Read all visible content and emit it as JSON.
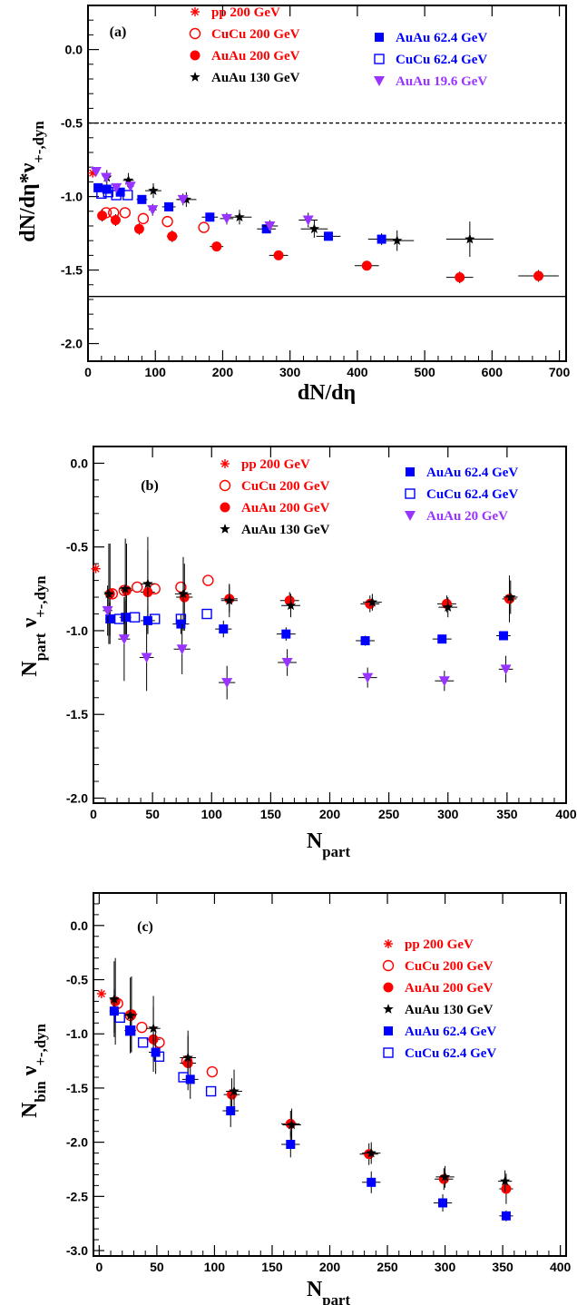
{
  "chart_data": [
    {
      "type": "scatter",
      "panel_label": "(a)",
      "xlabel": {
        "main": "dN/dη",
        "sub": ""
      },
      "ylabel": {
        "main": "dN/dη*ν",
        "sub": "+-,dyn"
      },
      "xlim": [
        0,
        710
      ],
      "ylim": [
        -2.12,
        0.3
      ],
      "xticks": [
        0,
        100,
        200,
        300,
        400,
        500,
        600,
        700
      ],
      "yticks": [
        -2.0,
        -1.5,
        -1.0,
        -0.5,
        0.0
      ],
      "ytick_labels": [
        "-2.0",
        "-1.5",
        "-1.0",
        "-0.5",
        "0.0"
      ],
      "reference_lines": [
        {
          "y": -0.5,
          "style": "dashed"
        },
        {
          "y": -1.68,
          "style": "solid"
        }
      ],
      "series": [
        {
          "name": "pp 200 GeV",
          "marker": "asterisk",
          "color": "#ff0000",
          "x": [
            7
          ],
          "y": [
            -0.84
          ],
          "yerr": [
            0
          ],
          "xerr": [
            0
          ]
        },
        {
          "name": "CuCu 200 GeV",
          "marker": "circle-open",
          "color": "#ff0000",
          "x": [
            27,
            38,
            55,
            82,
            118,
            172
          ],
          "y": [
            -1.11,
            -1.11,
            -1.11,
            -1.15,
            -1.17,
            -1.21
          ],
          "yerr": [
            0,
            0,
            0,
            0,
            0,
            0
          ],
          "xerr": [
            0,
            0,
            0,
            0,
            0,
            0
          ]
        },
        {
          "name": "AuAu 200 GeV",
          "marker": "circle",
          "color": "#ff0000",
          "x": [
            21,
            41,
            76,
            125,
            191,
            283,
            414,
            552,
            669
          ],
          "y": [
            -1.13,
            -1.16,
            -1.22,
            -1.27,
            -1.34,
            -1.4,
            -1.47,
            -1.55,
            -1.54
          ],
          "yerr": [
            0.04,
            0.04,
            0.04,
            0.04,
            0.03,
            0.03,
            0.03,
            0.04,
            0.04
          ],
          "xerr": [
            3,
            5,
            6,
            8,
            10,
            14,
            18,
            20,
            30
          ]
        },
        {
          "name": "AuAu 130 GeV",
          "marker": "star",
          "color": "#000000",
          "x": [
            28,
            60,
            97,
            146,
            225,
            336,
            459,
            567
          ],
          "y": [
            -0.87,
            -0.89,
            -0.96,
            -1.02,
            -1.14,
            -1.22,
            -1.3,
            -1.29
          ],
          "yerr": [
            0.05,
            0.05,
            0.05,
            0.05,
            0.05,
            0.06,
            0.07,
            0.12
          ],
          "xerr": [
            5,
            8,
            12,
            15,
            18,
            20,
            25,
            35
          ]
        },
        {
          "name": "AuAu 62.4 GeV",
          "marker": "square",
          "color": "#0000ff",
          "x": [
            15,
            28,
            48,
            80,
            120,
            181,
            265,
            357,
            436
          ],
          "y": [
            -0.94,
            -0.95,
            -0.97,
            -1.02,
            -1.07,
            -1.14,
            -1.22,
            -1.27,
            -1.29
          ],
          "yerr": [
            0.03,
            0.03,
            0.03,
            0.03,
            0.03,
            0.03,
            0.03,
            0.03,
            0.04
          ],
          "xerr": [
            3,
            4,
            6,
            8,
            10,
            12,
            14,
            18,
            20
          ]
        },
        {
          "name": "CuCu 62.4 GeV",
          "marker": "square-open",
          "color": "#0000ff",
          "x": [
            20,
            30,
            42,
            59
          ],
          "y": [
            -0.98,
            -0.97,
            -0.99,
            -0.99
          ],
          "yerr": [
            0,
            0,
            0,
            0
          ],
          "xerr": [
            0,
            0,
            0,
            0
          ]
        },
        {
          "name": "AuAu 19.6 GeV",
          "marker": "triangle-down",
          "color": "#9933ff",
          "x": [
            12,
            27,
            42,
            63,
            96,
            141,
            206,
            270,
            327
          ],
          "y": [
            -0.83,
            -0.87,
            -0.94,
            -0.93,
            -1.09,
            -1.02,
            -1.15,
            -1.2,
            -1.16
          ],
          "yerr": [
            0.03,
            0.03,
            0.03,
            0.03,
            0.04,
            0.04,
            0.04,
            0.04,
            0.05
          ],
          "xerr": [
            2,
            3,
            4,
            5,
            6,
            8,
            10,
            12,
            14
          ]
        }
      ]
    },
    {
      "type": "scatter",
      "panel_label": "(b)",
      "xlabel": {
        "main": "N",
        "sub": "part"
      },
      "ylabel": {
        "main": "N",
        "sub": "part",
        "tail": " ν",
        "sub2": "+-,dyn"
      },
      "xlim": [
        0,
        400
      ],
      "ylim": [
        -2.03,
        0.1
      ],
      "xticks": [
        0,
        50,
        100,
        150,
        200,
        250,
        300,
        350,
        400
      ],
      "yticks": [
        -2.0,
        -1.5,
        -1.0,
        -0.5,
        0.0
      ],
      "ytick_labels": [
        "-2.0",
        "-1.5",
        "-1.0",
        "-0.5",
        "0.0"
      ],
      "reference_lines": [],
      "series": [
        {
          "name": "pp 200 GeV",
          "marker": "asterisk",
          "color": "#ff0000",
          "x": [
            2
          ],
          "y": [
            -0.63
          ],
          "yerr": [
            0
          ],
          "xerr": [
            0
          ]
        },
        {
          "name": "CuCu 200 GeV",
          "marker": "circle-open",
          "color": "#ff0000",
          "x": [
            16,
            26,
            37,
            52,
            74,
            97
          ],
          "y": [
            -0.78,
            -0.76,
            -0.74,
            -0.75,
            -0.74,
            -0.7
          ],
          "yerr": [
            0,
            0,
            0,
            0,
            0,
            0
          ],
          "xerr": [
            0,
            0,
            0,
            0,
            0,
            0
          ]
        },
        {
          "name": "AuAu 200 GeV",
          "marker": "circle",
          "color": "#ff0000",
          "x": [
            14,
            28,
            46,
            77,
            115,
            166,
            234,
            299,
            352
          ],
          "y": [
            -0.78,
            -0.76,
            -0.77,
            -0.8,
            -0.81,
            -0.82,
            -0.84,
            -0.84,
            -0.81
          ],
          "yerr": [
            0.3,
            0.28,
            0.25,
            0.2,
            0.08,
            0.05,
            0.05,
            0.05,
            0.14
          ],
          "xerr": [
            4,
            5,
            6,
            7,
            7,
            8,
            8,
            8,
            6
          ]
        },
        {
          "name": "AuAu 130 GeV",
          "marker": "star",
          "color": "#000000",
          "x": [
            13,
            27,
            46,
            76,
            115,
            167,
            236,
            300,
            353
          ],
          "y": [
            -0.78,
            -0.75,
            -0.72,
            -0.78,
            -0.82,
            -0.85,
            -0.83,
            -0.86,
            -0.8
          ],
          "yerr": [
            0.3,
            0.3,
            0.28,
            0.22,
            0.1,
            0.07,
            0.05,
            0.06,
            0.1
          ],
          "xerr": [
            4,
            5,
            6,
            7,
            7,
            8,
            8,
            8,
            6
          ]
        },
        {
          "name": "AuAu 62.4 GeV",
          "marker": "square",
          "color": "#0000ff",
          "x": [
            14,
            27,
            46,
            74,
            110,
            163,
            230,
            295,
            347
          ],
          "y": [
            -0.93,
            -0.92,
            -0.94,
            -0.96,
            -0.99,
            -1.02,
            -1.06,
            -1.05,
            -1.03
          ],
          "yerr": [
            0.1,
            0.1,
            0.08,
            0.06,
            0.05,
            0.04,
            0.03,
            0.02,
            0.02
          ],
          "xerr": [
            4,
            5,
            6,
            7,
            7,
            8,
            8,
            8,
            6
          ]
        },
        {
          "name": "CuCu 62.4 GeV",
          "marker": "square-open",
          "color": "#0000ff",
          "x": [
            22,
            35,
            52,
            74,
            96
          ],
          "y": [
            -0.93,
            -0.92,
            -0.93,
            -0.93,
            -0.9
          ],
          "yerr": [
            0,
            0,
            0,
            0,
            0
          ],
          "xerr": [
            0,
            0,
            0,
            0,
            0
          ]
        },
        {
          "name": "AuAu 20 GeV",
          "marker": "triangle-down",
          "color": "#9933ff",
          "x": [
            12,
            26,
            45,
            75,
            113,
            164,
            232,
            297,
            349
          ],
          "y": [
            -0.88,
            -1.05,
            -1.16,
            -1.11,
            -1.31,
            -1.19,
            -1.28,
            -1.3,
            -1.23
          ],
          "yerr": [
            0.15,
            0.25,
            0.2,
            0.15,
            0.1,
            0.08,
            0.06,
            0.06,
            0.08
          ],
          "xerr": [
            4,
            5,
            6,
            7,
            7,
            8,
            8,
            8,
            6
          ]
        }
      ]
    },
    {
      "type": "scatter",
      "panel_label": "(c)",
      "xlabel": {
        "main": "N",
        "sub": "part"
      },
      "ylabel": {
        "main": "N",
        "sub": "bin",
        "tail": " ν",
        "sub2": "+-,dyn"
      },
      "xlim": [
        -5,
        405
      ],
      "ylim": [
        -3.05,
        0.3
      ],
      "xticks": [
        0,
        50,
        100,
        150,
        200,
        250,
        300,
        350,
        400
      ],
      "yticks": [
        -3.0,
        -2.5,
        -2.0,
        -1.5,
        -1.0,
        -0.5,
        0.0
      ],
      "ytick_labels": [
        "-3.0",
        "-2.5",
        "-2.0",
        "-1.5",
        "-1.0",
        "-0.5",
        "0.0"
      ],
      "reference_lines": [],
      "series": [
        {
          "name": "pp 200 GeV",
          "marker": "asterisk",
          "color": "#ff0000",
          "x": [
            2
          ],
          "y": [
            -0.63
          ],
          "yerr": [
            0
          ],
          "xerr": [
            0
          ]
        },
        {
          "name": "CuCu 200 GeV",
          "marker": "circle-open",
          "color": "#ff0000",
          "x": [
            16,
            27,
            37,
            52,
            76,
            98
          ],
          "y": [
            -0.72,
            -0.83,
            -0.94,
            -1.08,
            -1.25,
            -1.35
          ],
          "yerr": [
            0,
            0,
            0,
            0,
            0,
            0
          ],
          "xerr": [
            0,
            0,
            0,
            0,
            0,
            0
          ]
        },
        {
          "name": "AuAu 200 GeV",
          "marker": "circle",
          "color": "#ff0000",
          "x": [
            14,
            28,
            47,
            77,
            115,
            166,
            234,
            299,
            353
          ],
          "y": [
            -0.7,
            -0.82,
            -1.05,
            -1.27,
            -1.56,
            -1.83,
            -2.11,
            -2.34,
            -2.43
          ],
          "yerr": [
            0.4,
            0.35,
            0.3,
            0.25,
            0.15,
            0.12,
            0.1,
            0.1,
            0.14
          ],
          "xerr": [
            4,
            5,
            6,
            7,
            7,
            8,
            8,
            8,
            6
          ]
        },
        {
          "name": "AuAu 130 GeV",
          "marker": "star",
          "color": "#000000",
          "x": [
            13,
            27,
            47,
            77,
            117,
            167,
            236,
            300,
            352
          ],
          "y": [
            -0.68,
            -0.83,
            -0.95,
            -1.22,
            -1.53,
            -1.84,
            -2.1,
            -2.32,
            -2.36
          ],
          "yerr": [
            0.35,
            0.35,
            0.3,
            0.25,
            0.2,
            0.15,
            0.1,
            0.1,
            0.1
          ],
          "xerr": [
            4,
            5,
            6,
            7,
            7,
            8,
            8,
            8,
            6
          ]
        },
        {
          "name": "AuAu 62.4 GeV",
          "marker": "square",
          "color": "#0000ff",
          "x": [
            13,
            27,
            49,
            79,
            114,
            166,
            236,
            298,
            353
          ],
          "y": [
            -0.79,
            -0.97,
            -1.17,
            -1.42,
            -1.71,
            -2.02,
            -2.37,
            -2.56,
            -2.68
          ],
          "yerr": [
            0.2,
            0.2,
            0.2,
            0.18,
            0.15,
            0.12,
            0.1,
            0.08,
            0.05
          ],
          "xerr": [
            4,
            5,
            6,
            7,
            7,
            8,
            8,
            8,
            6
          ]
        },
        {
          "name": "CuCu 62.4 GeV",
          "marker": "square-open",
          "color": "#0000ff",
          "x": [
            18,
            27,
            38,
            52,
            73,
            97
          ],
          "y": [
            -0.85,
            -0.97,
            -1.08,
            -1.21,
            -1.4,
            -1.53
          ],
          "yerr": [
            0,
            0,
            0,
            0,
            0,
            0
          ],
          "xerr": [
            0,
            0,
            0,
            0,
            0,
            0
          ]
        }
      ]
    }
  ],
  "panel_layout": [
    {
      "legend": [
        {
          "series": 0,
          "col": 0,
          "row": 0
        },
        {
          "series": 1,
          "col": 0,
          "row": 1
        },
        {
          "series": 2,
          "col": 0,
          "row": 2
        },
        {
          "series": 3,
          "col": 0,
          "row": 3
        },
        {
          "series": 4,
          "col": 1,
          "row": 0
        },
        {
          "series": 5,
          "col": 1,
          "row": 1
        },
        {
          "series": 6,
          "col": 1,
          "row": 2
        }
      ]
    },
    {
      "legend": [
        {
          "series": 0,
          "col": 0,
          "row": 0
        },
        {
          "series": 1,
          "col": 0,
          "row": 1
        },
        {
          "series": 2,
          "col": 0,
          "row": 2
        },
        {
          "series": 3,
          "col": 0,
          "row": 3
        },
        {
          "series": 4,
          "col": 1,
          "row": 0
        },
        {
          "series": 5,
          "col": 1,
          "row": 1
        },
        {
          "series": 6,
          "col": 1,
          "row": 2
        }
      ]
    },
    {
      "legend": [
        {
          "series": 0,
          "col": 0,
          "row": 0
        },
        {
          "series": 1,
          "col": 0,
          "row": 1
        },
        {
          "series": 2,
          "col": 0,
          "row": 2
        },
        {
          "series": 3,
          "col": 0,
          "row": 3
        },
        {
          "series": 4,
          "col": 0,
          "row": 4
        },
        {
          "series": 5,
          "col": 0,
          "row": 5
        }
      ]
    }
  ]
}
